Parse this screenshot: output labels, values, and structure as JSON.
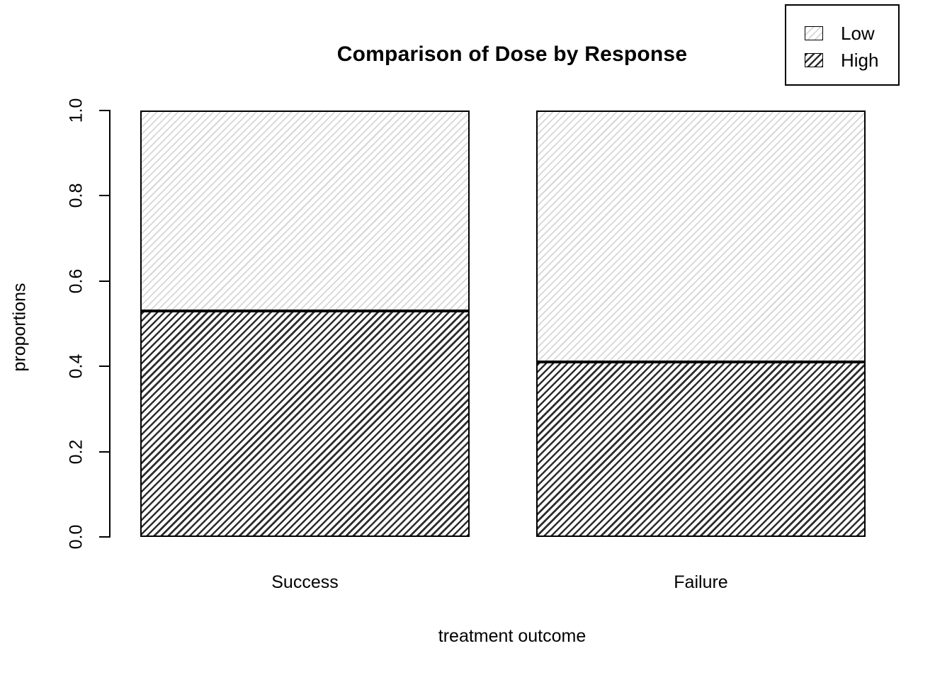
{
  "chart_data": {
    "type": "bar",
    "stacked": true,
    "title": "Comparison of Dose by Response",
    "xlabel": "treatment outcome",
    "ylabel": "proportions",
    "categories": [
      "Success",
      "Failure"
    ],
    "series": [
      {
        "name": "High",
        "hatch": "dark",
        "values": [
          0.53,
          0.41
        ]
      },
      {
        "name": "Low",
        "hatch": "light",
        "values": [
          0.47,
          0.59
        ]
      }
    ],
    "stack_order": "bottom-to-top",
    "ylim": [
      0,
      1
    ],
    "ytick_labels": [
      "0.0",
      "0.2",
      "0.4",
      "0.6",
      "0.8",
      "1.0"
    ],
    "grid": false,
    "legend_position": "top-right",
    "hatch_style": "45-degree diagonal hatching; Low = sparse light-gray lines, High = dense dark lines"
  },
  "legend": {
    "items": [
      {
        "label": "Low",
        "hatch": "light"
      },
      {
        "label": "High",
        "hatch": "dark"
      }
    ]
  },
  "colors": {
    "background": "#ffffff",
    "axis": "#000000",
    "hatch_light": "#d6d6d6",
    "hatch_dark": "#2d2d2d",
    "bar_border": "#000000"
  }
}
